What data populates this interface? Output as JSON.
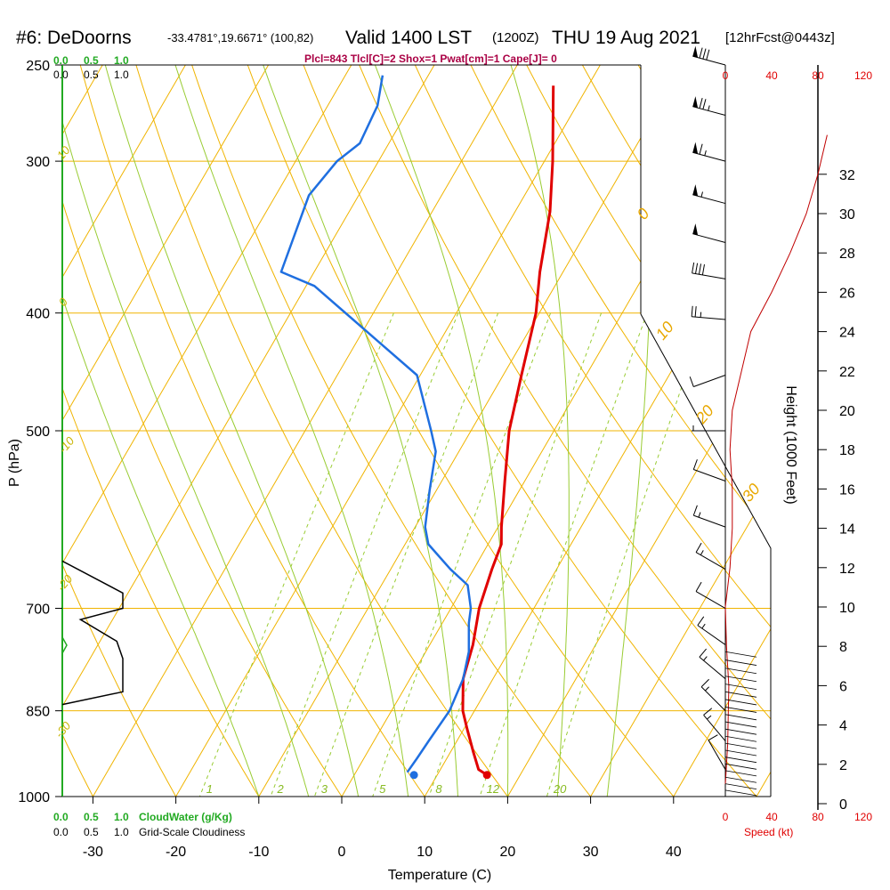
{
  "title": {
    "station": "#6: DeDoorns",
    "coords": "-33.4781°,19.6671° (100,82)",
    "valid": "Valid 1400 LST",
    "zulu": "(1200Z)",
    "date": "THU 19 Aug 2021",
    "forecast": "[12hrFcst@0443z]"
  },
  "params_line": "Plcl=843 Tlcl[C]=2 Shox=1 Pwat[cm]=1 Cape[J]= 0",
  "cloud_scale": {
    "green_ticks": [
      "0.0",
      "0.5",
      "1.0"
    ],
    "black_ticks": [
      "0.0",
      "0.5",
      "1.0"
    ],
    "cloudwater_label": "CloudWater (g/Kg)",
    "cloudiness_label": "Grid-Scale Cloudiness"
  },
  "speed_axis": {
    "label": "Speed (kt)",
    "ticks": [
      "0",
      "40",
      "80",
      "120"
    ]
  },
  "colors": {
    "isotherm": "#f0b400",
    "dry_adiabat": "#f0b400",
    "moist_adiabat": "#99cc33",
    "mixing_ratio": "#99cc33",
    "temperature": "#e00000",
    "dewpoint": "#1f6fe0",
    "cloudwater": "#22aa22",
    "cloudiness": "#000000",
    "speed": "#c00000"
  },
  "chart_data": {
    "type": "line",
    "xlabel": "Temperature (C)",
    "ylabel": "P (hPa)",
    "y2label": "Height (1000 Feet)",
    "xlim": [
      -35,
      45
    ],
    "ylim": [
      1000,
      250
    ],
    "y_scale": "log",
    "x_ticks": [
      -30,
      -20,
      -10,
      0,
      10,
      20,
      30,
      40
    ],
    "pressure_ticks": [
      250,
      300,
      400,
      500,
      700,
      850,
      1000
    ],
    "height_ticks": [
      0,
      2,
      4,
      6,
      8,
      10,
      12,
      14,
      16,
      18,
      20,
      22,
      24,
      26,
      28,
      30,
      32
    ],
    "isotherm_labels": [
      {
        "temp": -30,
        "label": "10"
      },
      {
        "temp": -20,
        "label": "0"
      },
      {
        "temp": -10,
        "label": "-10"
      },
      {
        "temp": 0,
        "label": "-20"
      },
      {
        "temp": 10,
        "label": "-30"
      },
      {
        "temp": 20,
        "label": "0"
      },
      {
        "temp": 30,
        "label": "10"
      },
      {
        "temp": 40,
        "label": "20"
      },
      {
        "temp": 50,
        "label": "30"
      }
    ],
    "mixing_ratio_labels": [
      "1",
      "2",
      "3",
      "5",
      "8",
      "12",
      "20"
    ],
    "series": [
      {
        "name": "Temperature",
        "points": [
          {
            "p": 960,
            "t": 16.0
          },
          {
            "p": 950,
            "t": 14.6
          },
          {
            "p": 920,
            "t": 12.8
          },
          {
            "p": 880,
            "t": 10.4
          },
          {
            "p": 850,
            "t": 8.6
          },
          {
            "p": 800,
            "t": 6.4
          },
          {
            "p": 750,
            "t": 5.2
          },
          {
            "p": 700,
            "t": 3.4
          },
          {
            "p": 650,
            "t": 2.2
          },
          {
            "p": 620,
            "t": 1.6
          },
          {
            "p": 600,
            "t": 0.4
          },
          {
            "p": 550,
            "t": -2.4
          },
          {
            "p": 500,
            "t": -5.4
          },
          {
            "p": 450,
            "t": -7.8
          },
          {
            "p": 400,
            "t": -10.4
          },
          {
            "p": 370,
            "t": -12.8
          },
          {
            "p": 330,
            "t": -15.8
          },
          {
            "p": 300,
            "t": -19.0
          },
          {
            "p": 260,
            "t": -24.2
          }
        ]
      },
      {
        "name": "Dewpoint",
        "points": [
          {
            "p": 955,
            "t": 6.2
          },
          {
            "p": 930,
            "t": 6.4
          },
          {
            "p": 900,
            "t": 6.6
          },
          {
            "p": 850,
            "t": 7.0
          },
          {
            "p": 800,
            "t": 6.4
          },
          {
            "p": 760,
            "t": 5.2
          },
          {
            "p": 720,
            "t": 3.2
          },
          {
            "p": 700,
            "t": 2.4
          },
          {
            "p": 670,
            "t": 0.4
          },
          {
            "p": 650,
            "t": -2.8
          },
          {
            "p": 620,
            "t": -7.2
          },
          {
            "p": 600,
            "t": -8.8
          },
          {
            "p": 560,
            "t": -10.8
          },
          {
            "p": 520,
            "t": -12.8
          },
          {
            "p": 500,
            "t": -14.8
          },
          {
            "p": 450,
            "t": -20.4
          },
          {
            "p": 420,
            "t": -28.0
          },
          {
            "p": 380,
            "t": -39.0
          },
          {
            "p": 370,
            "t": -44.0
          },
          {
            "p": 320,
            "t": -46.0
          },
          {
            "p": 300,
            "t": -45.0
          },
          {
            "p": 290,
            "t": -43.5
          },
          {
            "p": 270,
            "t": -44.0
          },
          {
            "p": 255,
            "t": -45.5
          }
        ]
      }
    ],
    "surface_temperature": {
      "p": 960,
      "t": 16.0
    },
    "surface_dewpoint": {
      "p": 960,
      "t": 7.2
    },
    "speed_profile": [
      {
        "h": 1,
        "kt": 0
      },
      {
        "h": 3,
        "kt": 2
      },
      {
        "h": 6,
        "kt": 3
      },
      {
        "h": 8,
        "kt": 1
      },
      {
        "h": 10,
        "kt": 0
      },
      {
        "h": 12,
        "kt": 4
      },
      {
        "h": 14,
        "kt": 6
      },
      {
        "h": 16,
        "kt": 6
      },
      {
        "h": 18,
        "kt": 4
      },
      {
        "h": 20,
        "kt": 6
      },
      {
        "h": 22,
        "kt": 14
      },
      {
        "h": 24,
        "kt": 22
      },
      {
        "h": 26,
        "kt": 40
      },
      {
        "h": 28,
        "kt": 56
      },
      {
        "h": 30,
        "kt": 70
      },
      {
        "h": 32,
        "kt": 80
      },
      {
        "h": 34,
        "kt": 88
      }
    ],
    "wind_barbs": [
      {
        "p": 250,
        "dir": 285,
        "kt": 80
      },
      {
        "p": 275,
        "dir": 285,
        "kt": 75
      },
      {
        "p": 300,
        "dir": 285,
        "kt": 65
      },
      {
        "p": 325,
        "dir": 285,
        "kt": 55
      },
      {
        "p": 350,
        "dir": 285,
        "kt": 50
      },
      {
        "p": 375,
        "dir": 280,
        "kt": 40
      },
      {
        "p": 405,
        "dir": 275,
        "kt": 25
      },
      {
        "p": 450,
        "dir": 250,
        "kt": 10
      },
      {
        "p": 500,
        "dir": 270,
        "kt": 5
      },
      {
        "p": 550,
        "dir": 290,
        "kt": 10
      },
      {
        "p": 600,
        "dir": 290,
        "kt": 15
      },
      {
        "p": 650,
        "dir": 300,
        "kt": 15
      },
      {
        "p": 700,
        "dir": 300,
        "kt": 10
      },
      {
        "p": 750,
        "dir": 305,
        "kt": 15
      },
      {
        "p": 800,
        "dir": 310,
        "kt": 15
      },
      {
        "p": 850,
        "dir": 315,
        "kt": 15
      },
      {
        "p": 900,
        "dir": 320,
        "kt": 15
      },
      {
        "p": 950,
        "dir": 330,
        "kt": 10
      }
    ],
    "cloudiness_profile": [
      {
        "p": 640,
        "v": 0.0
      },
      {
        "p": 680,
        "v": 0.5
      },
      {
        "p": 700,
        "v": 0.5
      },
      {
        "p": 715,
        "v": 0.15
      },
      {
        "p": 745,
        "v": 0.45
      },
      {
        "p": 770,
        "v": 0.5
      },
      {
        "p": 820,
        "v": 0.5
      },
      {
        "p": 840,
        "v": 0.0
      }
    ]
  }
}
